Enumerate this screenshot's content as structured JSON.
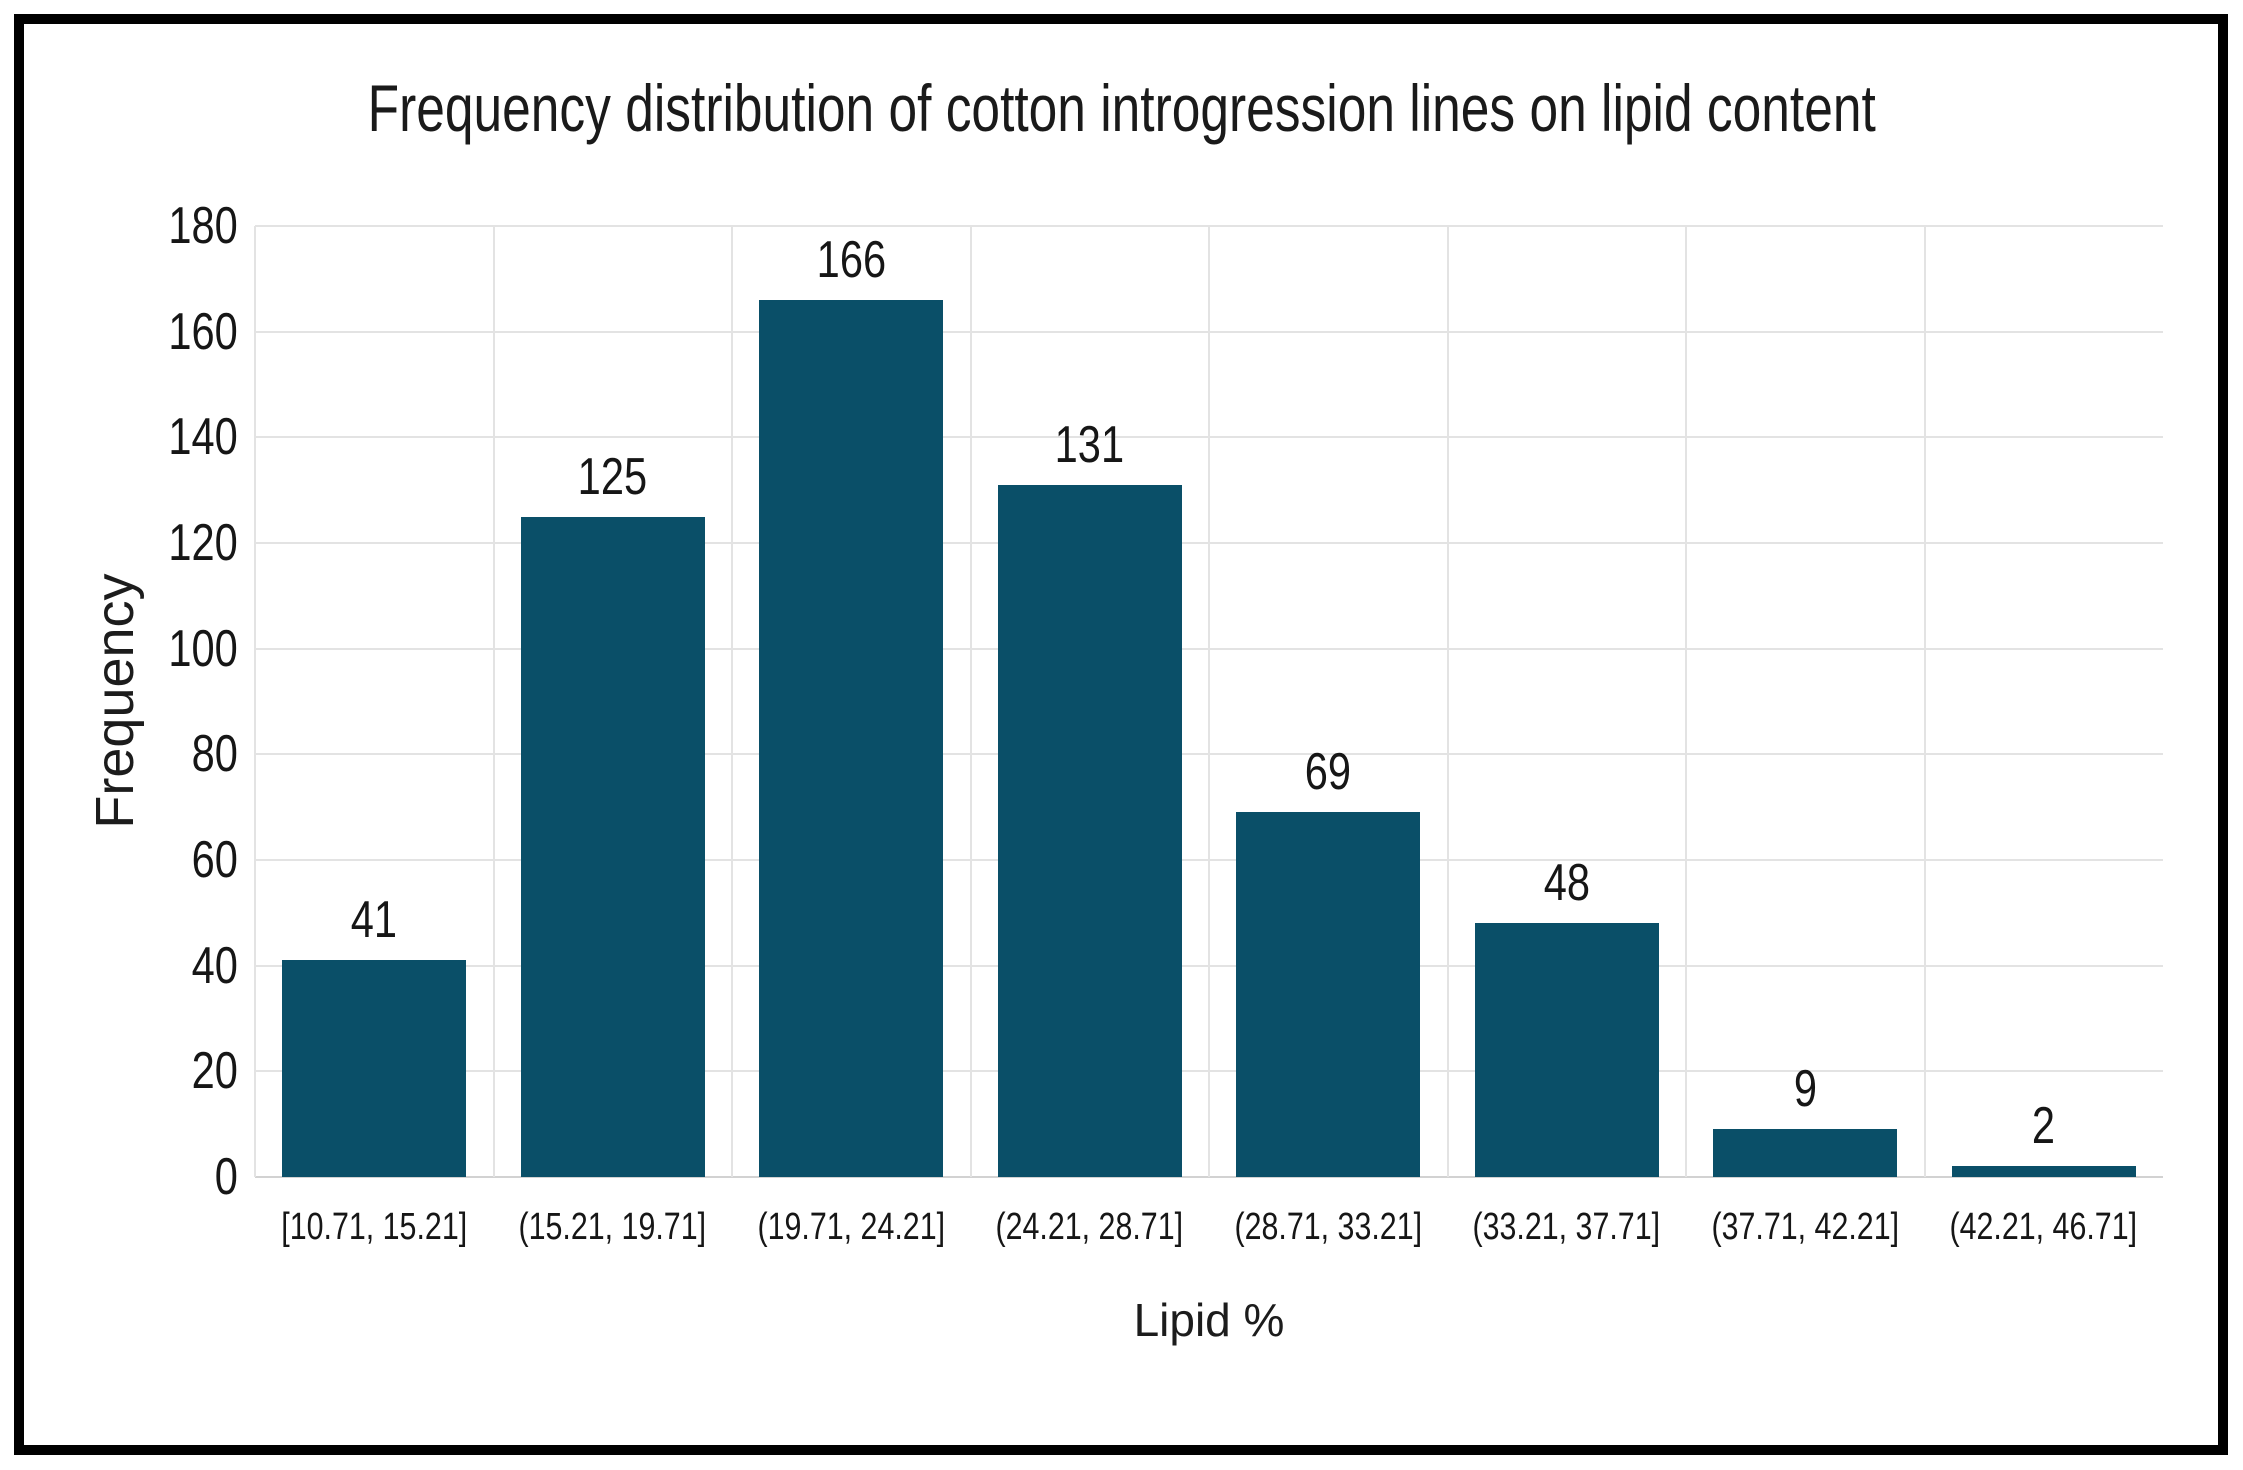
{
  "frame": {
    "border_color": "#000000",
    "background_color": "#ffffff"
  },
  "chart_data": {
    "type": "bar",
    "title": "Frequency distribution of cotton introgression lines on lipid content",
    "xlabel": "Lipid %",
    "ylabel": "Frequency",
    "categories": [
      "[10.71, 15.21]",
      "(15.21, 19.71]",
      "(19.71, 24.21]",
      "(24.21, 28.71]",
      "(28.71, 33.21]",
      "(33.21, 37.71]",
      "(37.71, 42.21]",
      "(42.21, 46.71]"
    ],
    "values": [
      41,
      125,
      166,
      131,
      69,
      48,
      9,
      2
    ],
    "bar_labels": [
      "41",
      "125",
      "166",
      "131",
      "69",
      "48",
      "9",
      "2"
    ],
    "ylim": [
      0,
      180
    ],
    "ytick_interval": 20,
    "yticks": [
      0,
      20,
      40,
      60,
      80,
      100,
      120,
      140,
      160,
      180
    ],
    "grid": "horizontal gridlines every 20 units and vertical gridlines at bin boundaries",
    "legend_position": "none",
    "colors": {
      "bar": "#0a4f68",
      "gridline": "#e3e3e3",
      "axis_line": "#d2d2d2",
      "text": "#1a1a1a"
    }
  }
}
